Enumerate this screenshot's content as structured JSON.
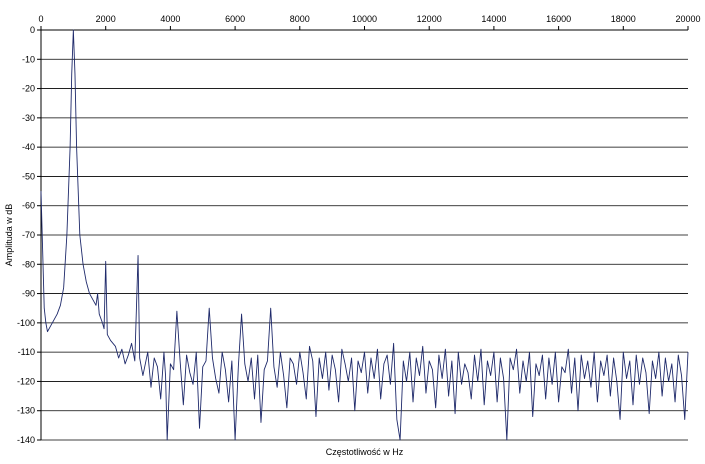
{
  "chart_data": {
    "type": "line",
    "xlabel": "Częstotliwość w Hz",
    "ylabel": "Amplituda w dB",
    "xlim": [
      0,
      20000
    ],
    "ylim": [
      -140,
      0
    ],
    "x_ticks": [
      "0",
      "2000",
      "4000",
      "6000",
      "8000",
      "10000",
      "12000",
      "14000",
      "16000",
      "18000",
      "20000"
    ],
    "y_ticks": [
      "0",
      "-10",
      "-20",
      "-30",
      "-40",
      "-50",
      "-60",
      "-70",
      "-80",
      "-90",
      "-100",
      "-110",
      "-120",
      "-130",
      "-140"
    ],
    "x_axis_position": "top",
    "grid": "horizontal",
    "colors": {
      "line": "#1f2a6b",
      "grid": "#000000"
    },
    "series": [
      {
        "points": [
          [
            0,
            -55
          ],
          [
            50,
            -75
          ],
          [
            100,
            -95
          ],
          [
            150,
            -100
          ],
          [
            200,
            -103
          ],
          [
            300,
            -101
          ],
          [
            400,
            -99
          ],
          [
            500,
            -97
          ],
          [
            600,
            -94
          ],
          [
            700,
            -88
          ],
          [
            800,
            -70
          ],
          [
            900,
            -40
          ],
          [
            950,
            -15
          ],
          [
            1000,
            0
          ],
          [
            1050,
            -15
          ],
          [
            1100,
            -40
          ],
          [
            1200,
            -70
          ],
          [
            1300,
            -80
          ],
          [
            1400,
            -86
          ],
          [
            1500,
            -90
          ],
          [
            1600,
            -92
          ],
          [
            1700,
            -94
          ],
          [
            1750,
            -90
          ],
          [
            1800,
            -97
          ],
          [
            1900,
            -100
          ],
          [
            1950,
            -102
          ],
          [
            2000,
            -79
          ],
          [
            2050,
            -104
          ],
          [
            2150,
            -106
          ],
          [
            2300,
            -108
          ],
          [
            2400,
            -112
          ],
          [
            2500,
            -109
          ],
          [
            2600,
            -114
          ],
          [
            2700,
            -111
          ],
          [
            2800,
            -107
          ],
          [
            2900,
            -113
          ],
          [
            3000,
            -77
          ],
          [
            3050,
            -112
          ],
          [
            3150,
            -118
          ],
          [
            3300,
            -110
          ],
          [
            3400,
            -122
          ],
          [
            3500,
            -112
          ],
          [
            3600,
            -115
          ],
          [
            3700,
            -126
          ],
          [
            3800,
            -110
          ],
          [
            3850,
            -118
          ],
          [
            3900,
            -140
          ],
          [
            4000,
            -114
          ],
          [
            4100,
            -116
          ],
          [
            4200,
            -96
          ],
          [
            4300,
            -113
          ],
          [
            4400,
            -128
          ],
          [
            4500,
            -111
          ],
          [
            4600,
            -117
          ],
          [
            4700,
            -121
          ],
          [
            4800,
            -110
          ],
          [
            4900,
            -136
          ],
          [
            5000,
            -115
          ],
          [
            5100,
            -113
          ],
          [
            5200,
            -95
          ],
          [
            5300,
            -112
          ],
          [
            5400,
            -119
          ],
          [
            5500,
            -124
          ],
          [
            5600,
            -110
          ],
          [
            5700,
            -116
          ],
          [
            5800,
            -127
          ],
          [
            5900,
            -113
          ],
          [
            6000,
            -140
          ],
          [
            6100,
            -115
          ],
          [
            6200,
            -97
          ],
          [
            6300,
            -114
          ],
          [
            6400,
            -120
          ],
          [
            6500,
            -112
          ],
          [
            6600,
            -126
          ],
          [
            6700,
            -111
          ],
          [
            6800,
            -134
          ],
          [
            6900,
            -116
          ],
          [
            7000,
            -113
          ],
          [
            7100,
            -95
          ],
          [
            7200,
            -115
          ],
          [
            7300,
            -122
          ],
          [
            7400,
            -110
          ],
          [
            7500,
            -118
          ],
          [
            7600,
            -129
          ],
          [
            7700,
            -112
          ],
          [
            7800,
            -114
          ],
          [
            7900,
            -121
          ],
          [
            8000,
            -110
          ],
          [
            8100,
            -117
          ],
          [
            8200,
            -126
          ],
          [
            8300,
            -108
          ],
          [
            8400,
            -113
          ],
          [
            8500,
            -132
          ],
          [
            8600,
            -112
          ],
          [
            8700,
            -119
          ],
          [
            8800,
            -110
          ],
          [
            8900,
            -123
          ],
          [
            9000,
            -111
          ],
          [
            9100,
            -116
          ],
          [
            9200,
            -127
          ],
          [
            9300,
            -109
          ],
          [
            9400,
            -114
          ],
          [
            9500,
            -120
          ],
          [
            9600,
            -112
          ],
          [
            9700,
            -130
          ],
          [
            9800,
            -113
          ],
          [
            9900,
            -117
          ],
          [
            10000,
            -110
          ],
          [
            10100,
            -124
          ],
          [
            10200,
            -112
          ],
          [
            10300,
            -119
          ],
          [
            10400,
            -109
          ],
          [
            10500,
            -126
          ],
          [
            10600,
            -114
          ],
          [
            10700,
            -111
          ],
          [
            10800,
            -121
          ],
          [
            10900,
            -107
          ],
          [
            11000,
            -133
          ],
          [
            11100,
            -140
          ],
          [
            11200,
            -113
          ],
          [
            11300,
            -120
          ],
          [
            11400,
            -110
          ],
          [
            11500,
            -127
          ],
          [
            11600,
            -112
          ],
          [
            11700,
            -118
          ],
          [
            11800,
            -108
          ],
          [
            11900,
            -124
          ],
          [
            12000,
            -113
          ],
          [
            12100,
            -116
          ],
          [
            12200,
            -129
          ],
          [
            12300,
            -111
          ],
          [
            12400,
            -119
          ],
          [
            12500,
            -109
          ],
          [
            12600,
            -125
          ],
          [
            12700,
            -113
          ],
          [
            12800,
            -131
          ],
          [
            12900,
            -110
          ],
          [
            13000,
            -121
          ],
          [
            13100,
            -114
          ],
          [
            13200,
            -117
          ],
          [
            13300,
            -126
          ],
          [
            13400,
            -111
          ],
          [
            13500,
            -120
          ],
          [
            13600,
            -109
          ],
          [
            13700,
            -128
          ],
          [
            13800,
            -113
          ],
          [
            13900,
            -118
          ],
          [
            14000,
            -110
          ],
          [
            14100,
            -127
          ],
          [
            14200,
            -112
          ],
          [
            14300,
            -119
          ],
          [
            14400,
            -140
          ],
          [
            14500,
            -112
          ],
          [
            14600,
            -116
          ],
          [
            14700,
            -109
          ],
          [
            14800,
            -124
          ],
          [
            14900,
            -113
          ],
          [
            15000,
            -120
          ],
          [
            15100,
            -110
          ],
          [
            15200,
            -132
          ],
          [
            15300,
            -114
          ],
          [
            15400,
            -118
          ],
          [
            15500,
            -111
          ],
          [
            15600,
            -126
          ],
          [
            15700,
            -112
          ],
          [
            15800,
            -121
          ],
          [
            15900,
            -110
          ],
          [
            16000,
            -127
          ],
          [
            16100,
            -115
          ],
          [
            16200,
            -117
          ],
          [
            16300,
            -109
          ],
          [
            16400,
            -124
          ],
          [
            16500,
            -112
          ],
          [
            16600,
            -130
          ],
          [
            16700,
            -111
          ],
          [
            16800,
            -119
          ],
          [
            16900,
            -113
          ],
          [
            17000,
            -122
          ],
          [
            17100,
            -110
          ],
          [
            17200,
            -127
          ],
          [
            17300,
            -113
          ],
          [
            17400,
            -118
          ],
          [
            17500,
            -111
          ],
          [
            17600,
            -125
          ],
          [
            17700,
            -112
          ],
          [
            17800,
            -120
          ],
          [
            17900,
            -133
          ],
          [
            18000,
            -110
          ],
          [
            18100,
            -119
          ],
          [
            18200,
            -113
          ],
          [
            18300,
            -128
          ],
          [
            18400,
            -111
          ],
          [
            18500,
            -121
          ],
          [
            18600,
            -112
          ],
          [
            18700,
            -117
          ],
          [
            18800,
            -131
          ],
          [
            18900,
            -113
          ],
          [
            19000,
            -119
          ],
          [
            19100,
            -110
          ],
          [
            19200,
            -125
          ],
          [
            19300,
            -112
          ],
          [
            19400,
            -120
          ],
          [
            19500,
            -114
          ],
          [
            19600,
            -127
          ],
          [
            19700,
            -111
          ],
          [
            19800,
            -118
          ],
          [
            19900,
            -133
          ],
          [
            20000,
            -110
          ]
        ]
      }
    ]
  }
}
